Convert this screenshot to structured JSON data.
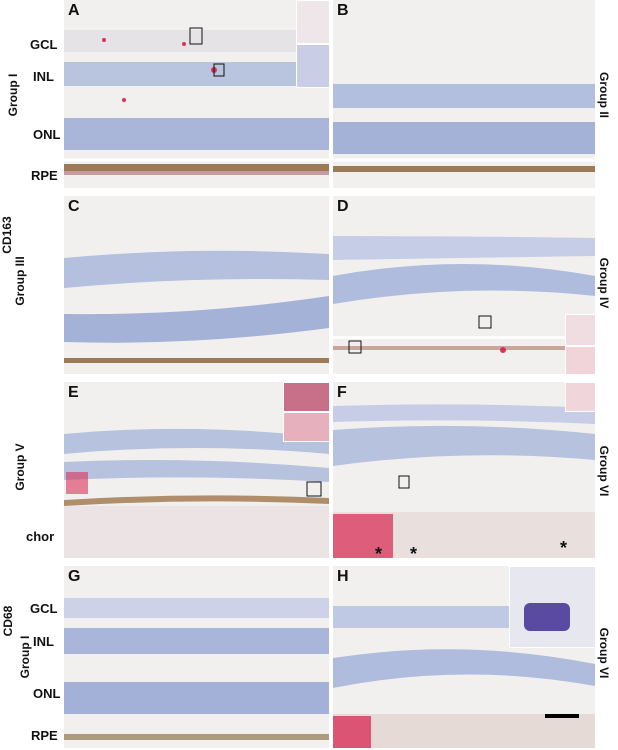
{
  "figure": {
    "panels": [
      {
        "id": "A",
        "label": "A"
      },
      {
        "id": "B",
        "label": "B"
      },
      {
        "id": "C",
        "label": "C"
      },
      {
        "id": "D",
        "label": "D"
      },
      {
        "id": "E",
        "label": "E"
      },
      {
        "id": "F",
        "label": "F"
      },
      {
        "id": "G",
        "label": "G"
      },
      {
        "id": "H",
        "label": "H"
      }
    ],
    "layer_labels": {
      "gcl": "GCL",
      "inl": "INL",
      "onl": "ONL",
      "rpe": "RPE",
      "chor": "chor"
    },
    "stains": {
      "cd163": "CD163",
      "cd68": "CD68"
    },
    "groups": {
      "g1": "Group I",
      "g2": "Group II",
      "g3": "Group III",
      "g4": "Group IV",
      "g5": "Group V",
      "g6": "Group VI"
    },
    "asterisk": "*",
    "colors": {
      "background": "#f1efed",
      "nuclei": "#5b78c0",
      "stain_red": "#d8325a",
      "rpe_brown": "#9b7a55"
    }
  }
}
